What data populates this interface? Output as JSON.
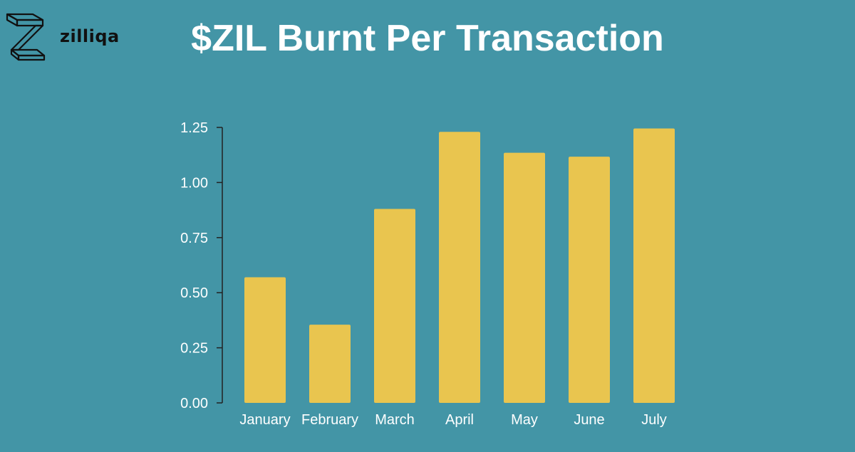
{
  "logo": {
    "text": "zilliqa",
    "icon": "zilliqa-logo-icon"
  },
  "chart_data": {
    "type": "bar",
    "title": "$ZIL Burnt Per Transaction",
    "categories": [
      "January",
      "February",
      "March",
      "April",
      "May",
      "June",
      "July"
    ],
    "values": [
      0.57,
      0.355,
      0.88,
      1.23,
      1.135,
      1.117,
      1.245
    ],
    "ylim": [
      0,
      1.25
    ],
    "yticks": [
      "0.00",
      "0.25",
      "0.50",
      "0.75",
      "1.00",
      "1.25"
    ],
    "bar_color": "#e9c54f",
    "axis_color": "#222222",
    "grid": false,
    "xlabel": "",
    "ylabel": ""
  }
}
